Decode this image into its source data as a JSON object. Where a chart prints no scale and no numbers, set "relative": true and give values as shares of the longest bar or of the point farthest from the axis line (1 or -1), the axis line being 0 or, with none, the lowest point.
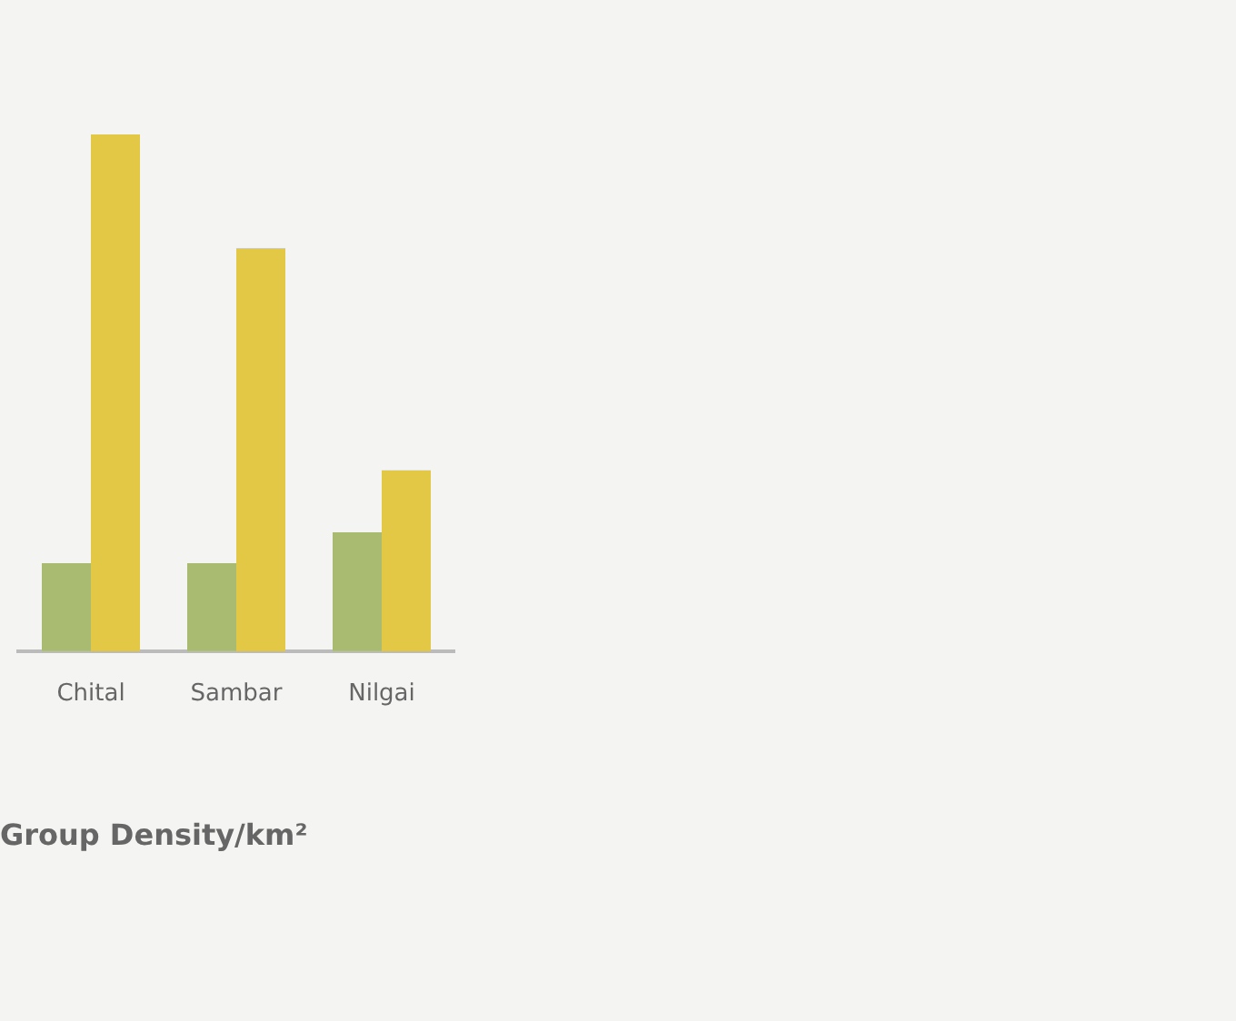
{
  "chart_data": {
    "type": "bar",
    "title": "Group Density/km²",
    "relative": true,
    "categories": [
      "Chital",
      "Sambar",
      "Nilgai"
    ],
    "series": [
      {
        "color": "#a9bb70",
        "values": [
          0.17,
          0.17,
          0.23
        ]
      },
      {
        "color": "#e2c845",
        "values": [
          1,
          0.78,
          0.35
        ]
      }
    ],
    "grid": false,
    "legend": false
  }
}
